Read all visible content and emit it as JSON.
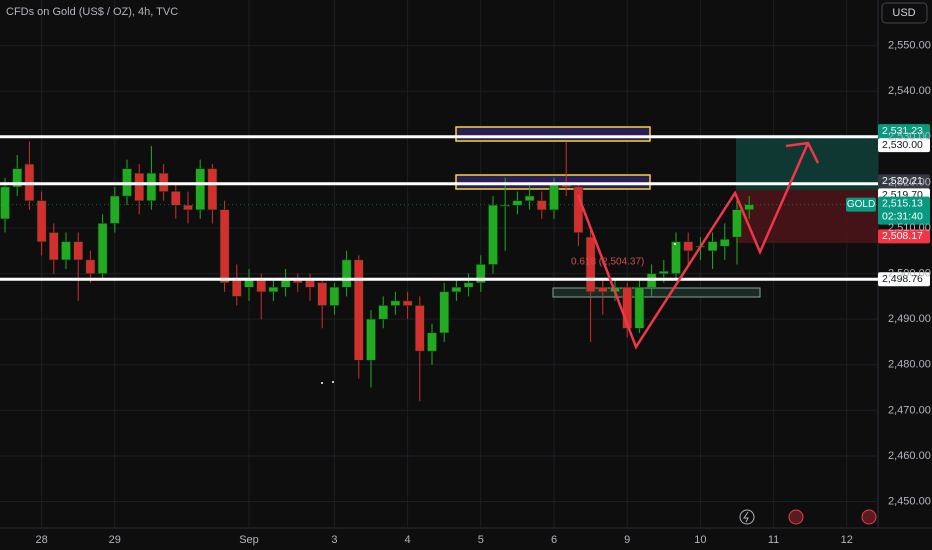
{
  "chart_data": {
    "type": "candlestick",
    "title": "CFDs on Gold (US$ / OZ), 4h, TVC",
    "currency": "USD",
    "categories": [
      null,
      null,
      null,
      "28",
      null,
      null,
      null,
      null,
      null,
      "29",
      null,
      null,
      null,
      null,
      null,
      null,
      null,
      null,
      null,
      null,
      "Sep",
      null,
      null,
      null,
      null,
      null,
      null,
      "3",
      null,
      null,
      null,
      null,
      null,
      "4",
      null,
      null,
      null,
      null,
      null,
      "5",
      null,
      null,
      null,
      null,
      null,
      "6",
      null,
      null,
      null,
      null,
      null,
      "9",
      null,
      null,
      null,
      null,
      null,
      "10",
      null,
      null,
      null,
      null,
      null,
      "11",
      null,
      null,
      null,
      null,
      null,
      "12"
    ],
    "open": [
      2512,
      2519,
      2524,
      2516,
      2509,
      2503,
      2507,
      2503,
      2500,
      2511,
      2517,
      2522,
      2516,
      2522,
      2518,
      2515,
      2514,
      2523,
      2514,
      2499,
      2497,
      2499,
      2496,
      2497,
      2499,
      2499,
      2498,
      2493,
      2497,
      2503,
      2481,
      2490,
      2493,
      2494,
      2493,
      2483,
      2487,
      2496,
      2497,
      2498,
      2502,
      2515,
      2515,
      2516,
      2516,
      2514,
      2520,
      2519,
      2508,
      2497,
      2496,
      2497,
      2488,
      2497,
      2500,
      2500,
      2507,
      2506,
      2505,
      2506,
      2508,
      2514,
      null,
      null,
      null,
      null,
      null,
      null,
      null,
      null
    ],
    "high": [
      2521,
      2526,
      2529,
      2518,
      2511,
      2509,
      2509,
      2505,
      2513,
      2519,
      2525,
      2524,
      2528,
      2524,
      2520,
      2518,
      2525,
      2524,
      2516,
      2502,
      2501,
      2500,
      2499,
      2501,
      2500,
      2500,
      2499,
      2498,
      2505,
      2504,
      2492,
      2495,
      2496,
      2496,
      2495,
      2489,
      2498,
      2499,
      2500,
      2504,
      2517,
      2521,
      2518,
      2520,
      2518,
      2521,
      2529,
      2520,
      2510,
      2499,
      2499,
      2498,
      2499,
      2502,
      2503,
      2509,
      2509,
      2508,
      2509,
      2511,
      2516,
      2517,
      null,
      null,
      null,
      null,
      null,
      null,
      null,
      null
    ],
    "low": [
      2509,
      2517,
      2514,
      2504,
      2500,
      2501,
      2494,
      2498,
      2499,
      2509,
      2515,
      2513,
      2514,
      2516,
      2512,
      2511,
      2512,
      2511,
      2496,
      2493,
      2494,
      2490,
      2494,
      2495,
      2496,
      2494,
      2488,
      2491,
      2495,
      2477,
      2475,
      2488,
      2491,
      2490,
      2472,
      2480,
      2485,
      2494,
      2495,
      2496,
      2500,
      2505,
      2513,
      2514,
      2512,
      2512,
      2517,
      2506,
      2485,
      2491,
      2494,
      2486,
      2487,
      2495,
      2498,
      2499,
      2502,
      2503,
      2501,
      2503,
      2502,
      2512,
      null,
      null,
      null,
      null,
      null,
      null,
      null,
      null
    ],
    "close": [
      2519,
      2523,
      2516,
      2507,
      2503,
      2507,
      2503,
      2500,
      2511,
      2517,
      2523,
      2516,
      2522,
      2518,
      2515,
      2514,
      2523,
      2514,
      2498,
      2495,
      2499,
      2496,
      2497,
      2499,
      2498,
      2497,
      2493,
      2497,
      2503,
      2481,
      2490,
      2493,
      2494,
      2493,
      2483,
      2487,
      2496,
      2497,
      2498,
      2502,
      2515,
      2515,
      2516,
      2517,
      2514,
      2520,
      2519,
      2509,
      2496,
      2496,
      2497,
      2488,
      2497,
      2500,
      2500.5,
      2507,
      2505,
      2506,
      2507,
      2507.5,
      2514,
      2515.13,
      null,
      null,
      null,
      null,
      null,
      null,
      null,
      null
    ],
    "up_color": "#22ab22",
    "down_color": "#d32f2f",
    "ylim": [
      2444.2,
      2560
    ],
    "yticks": [
      {
        "value": 2450,
        "label": "2,450.00"
      },
      {
        "value": 2460,
        "label": "2,460.00"
      },
      {
        "value": 2470,
        "label": "2,470.00"
      },
      {
        "value": 2480,
        "label": "2,480.00"
      },
      {
        "value": 2490,
        "label": "2,490.00"
      },
      {
        "value": 2500,
        "label": "2,500.00"
      },
      {
        "value": 2510,
        "label": "2,510.00"
      },
      {
        "value": 2520,
        "label": "2,520.00"
      },
      {
        "value": 2530,
        "label": "2,530.00"
      },
      {
        "value": 2540,
        "label": "2,540.00"
      },
      {
        "value": 2550,
        "label": "2,550.00"
      }
    ],
    "levels": [
      {
        "value": 2530,
        "label": "2,530.00"
      },
      {
        "value": 2519.7,
        "label": "2,519.70"
      },
      {
        "value": 2498.76,
        "label": "2,498.76"
      }
    ],
    "tags": [
      {
        "value": 2531.23,
        "label": "2,531.23",
        "color": "#089981"
      },
      {
        "value": 2520.21,
        "label": "2,520.21",
        "color": "#363a45"
      },
      {
        "value": 2508.17,
        "label": "2,508.17",
        "color": "#f23645"
      }
    ],
    "last_price": {
      "symbol": "GOLD",
      "value": 2515.13,
      "label": "2,515.13",
      "countdown": "02:31:40",
      "color": "#089981"
    },
    "annotation": "0.618 (2,504.37)"
  }
}
